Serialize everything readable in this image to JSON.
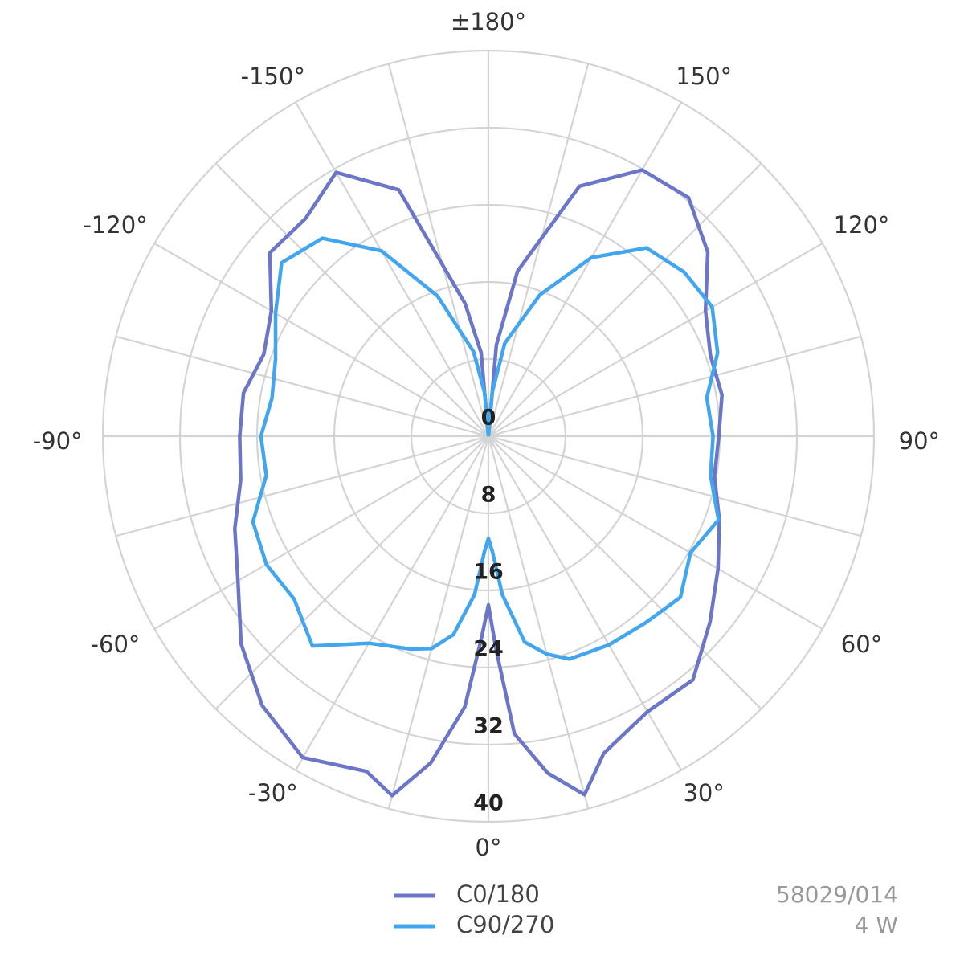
{
  "chart_data": {
    "type": "polar",
    "rlim": [
      0,
      40
    ],
    "rticks": [
      0,
      8,
      16,
      24,
      32,
      40
    ],
    "thetaticks": [
      {
        "value": 0,
        "label": "0°"
      },
      {
        "value": 30,
        "label": "30°"
      },
      {
        "value": 60,
        "label": "60°"
      },
      {
        "value": 90,
        "label": "90°"
      },
      {
        "value": 120,
        "label": "120°"
      },
      {
        "value": 150,
        "label": "150°"
      },
      {
        "value": 180,
        "label": "±180°"
      },
      {
        "value": -150,
        "label": "-150°"
      },
      {
        "value": -120,
        "label": "-120°"
      },
      {
        "value": -90,
        "label": "-90°"
      },
      {
        "value": -60,
        "label": "-60°"
      },
      {
        "value": -30,
        "label": "-30°"
      }
    ],
    "grid": true,
    "legend": "bottom",
    "x": [
      -180,
      -175,
      -170,
      -160,
      -150,
      -140,
      -130,
      -120,
      -110,
      -100,
      -90,
      -80,
      -70,
      -60,
      -50,
      -40,
      -30,
      -20,
      -15,
      -10,
      -5,
      -2,
      0,
      2,
      5,
      10,
      15,
      20,
      30,
      40,
      50,
      60,
      70,
      80,
      90,
      100,
      110,
      120,
      130,
      140,
      150,
      160,
      170,
      175,
      180
    ],
    "series": [
      {
        "name": "C0/180",
        "color": "#6b76c9",
        "values": [
          0,
          8.7,
          14,
          27.2,
          31.6,
          29.5,
          29.6,
          26,
          24.8,
          25.8,
          25.8,
          26.1,
          28,
          30,
          33.5,
          36.5,
          38.5,
          37,
          38.6,
          34.4,
          28.2,
          21,
          17.5,
          22,
          31,
          35.5,
          38.5,
          35,
          33,
          33,
          30,
          27.5,
          25.5,
          23.8,
          23.9,
          24.6,
          24.5,
          26,
          29.7,
          32.3,
          31.9,
          27.6,
          17.4,
          9.5,
          0
        ]
      },
      {
        "name": "C90/270",
        "color": "#42a6ef",
        "values": [
          0,
          4.5,
          8.9,
          15.5,
          22.2,
          26.8,
          28,
          25.5,
          23.5,
          22.8,
          23.6,
          23.4,
          26,
          26.6,
          26.3,
          28.4,
          24.8,
          23.5,
          22.8,
          20.9,
          16.5,
          12,
          10.6,
          12,
          16.5,
          21.7,
          23.4,
          24.6,
          25,
          25.3,
          26,
          24.2,
          25.4,
          23.4,
          23.3,
          23,
          25.3,
          26.8,
          26.5,
          25.5,
          21.4,
          15.6,
          9.8,
          4.6,
          0
        ]
      }
    ],
    "notes": [
      "58029/014",
      "4 W"
    ]
  }
}
